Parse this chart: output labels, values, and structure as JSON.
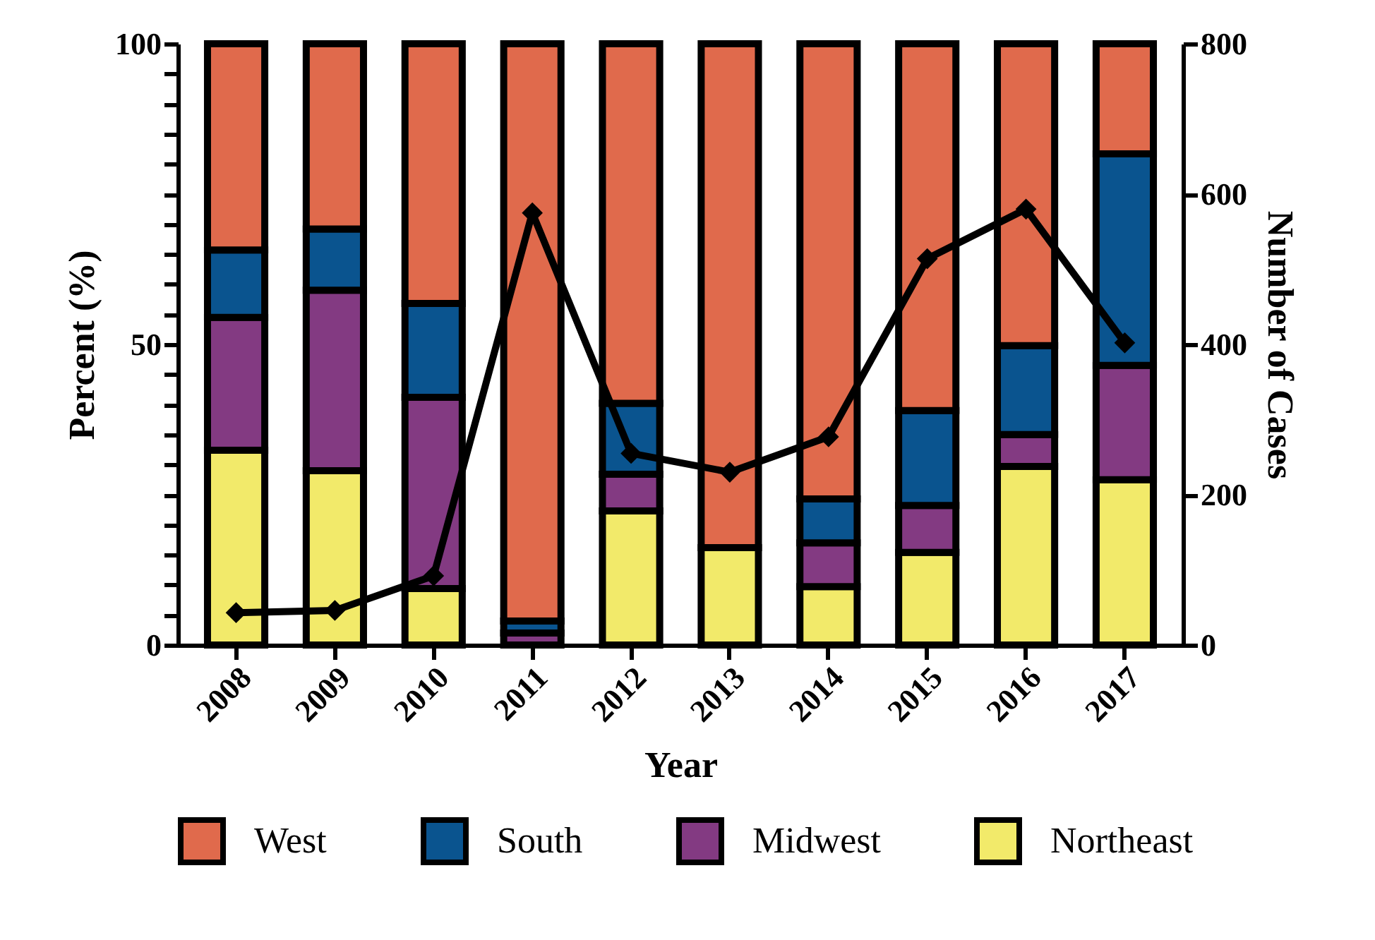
{
  "chart_data": {
    "type": "bar",
    "stacked": true,
    "xlabel": "Year",
    "ylabel": "Percent (%)",
    "y2label": "Number of Cases",
    "categories": [
      "2008",
      "2009",
      "2010",
      "2011",
      "2012",
      "2013",
      "2014",
      "2015",
      "2016",
      "2017"
    ],
    "series": [
      {
        "name": "Northeast",
        "color": "#f2ea6a",
        "values": [
          32.4,
          29,
          9.4,
          0,
          22.3,
          16.2,
          9.7,
          15.4,
          29.7,
          27.5
        ]
      },
      {
        "name": "Midwest",
        "color": "#833a82",
        "values": [
          22.1,
          30,
          31.8,
          2,
          6.1,
          0,
          7.3,
          7.8,
          5.3,
          19
        ]
      },
      {
        "name": "South",
        "color": "#0a548f",
        "values": [
          11.2,
          10.2,
          15.6,
          2,
          11.8,
          0,
          7.3,
          15.8,
          14.8,
          35.2
        ]
      },
      {
        "name": "West",
        "color": "#e06a4c",
        "values": [
          34.3,
          30.8,
          43.2,
          96,
          59.8,
          83.8,
          75.7,
          61,
          50.2,
          18.3
        ]
      },
      {
        "type": "line",
        "axis": "y2",
        "color": "#000000",
        "marker": "diamond",
        "values": [
          43,
          46,
          92,
          575,
          255,
          230,
          277,
          514,
          580,
          402
        ]
      }
    ],
    "ylim": [
      0,
      100
    ],
    "yticks": [
      0,
      {
        "value": 5,
        "label": null
      },
      {
        "value": 10,
        "label": null
      },
      {
        "value": 15,
        "label": null
      },
      {
        "value": 20,
        "label": null
      },
      {
        "value": 25,
        "label": null
      },
      {
        "value": 30,
        "label": null
      },
      {
        "value": 35,
        "label": null
      },
      {
        "value": 40,
        "label": null
      },
      {
        "value": 45,
        "label": null
      },
      50,
      {
        "value": 55,
        "label": null
      },
      {
        "value": 60,
        "label": null
      },
      {
        "value": 65,
        "label": null
      },
      {
        "value": 70,
        "label": null
      },
      {
        "value": 75,
        "label": null
      },
      {
        "value": 80,
        "label": null
      },
      {
        "value": 85,
        "label": null
      },
      {
        "value": 90,
        "label": null
      },
      {
        "value": 95,
        "label": null
      },
      100
    ],
    "y2lim": [
      0,
      800
    ],
    "y2ticks": [
      0,
      200,
      400,
      600,
      800
    ],
    "legend": "bottom",
    "grid": false
  }
}
